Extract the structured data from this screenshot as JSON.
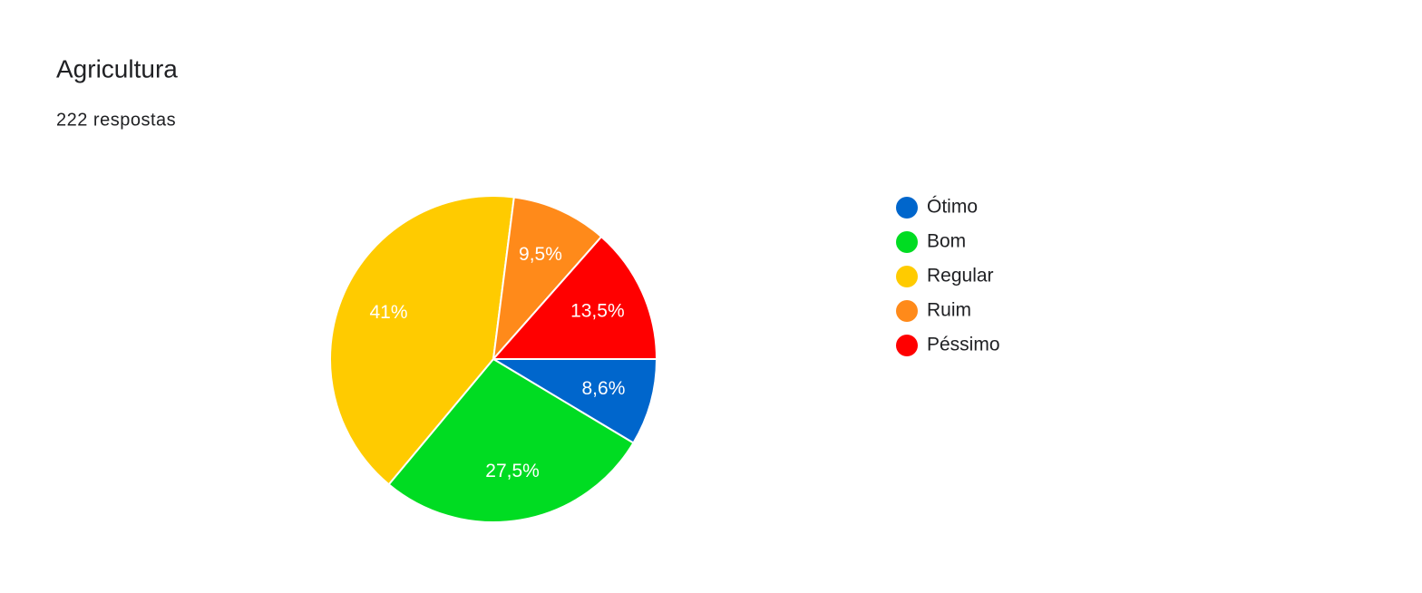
{
  "chart_data": {
    "type": "pie",
    "title": "Agricultura",
    "subtitle": "222 respostas",
    "categories": [
      "Ótimo",
      "Bom",
      "Regular",
      "Ruim",
      "Péssimo"
    ],
    "values": [
      8.6,
      27.5,
      41,
      9.5,
      13.5
    ],
    "value_labels": [
      "8,6%",
      "27,5%",
      "41%",
      "9,5%",
      "13,5%"
    ],
    "colors": [
      "#0066cc",
      "#00dc22",
      "#ffcb00",
      "#ff8a1a",
      "#ff0000"
    ],
    "legend": "right"
  }
}
